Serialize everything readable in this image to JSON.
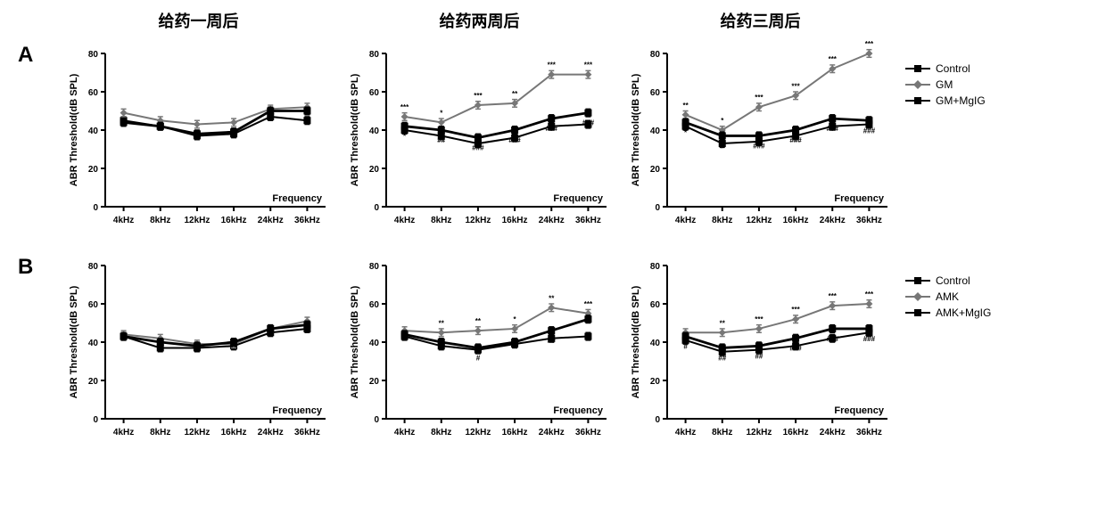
{
  "column_titles": [
    "给药一周后",
    "给药两周后",
    "给药三周后"
  ],
  "row_labels": [
    "A",
    "B"
  ],
  "y_axis_label": "ABR Threshold(dB SPL)",
  "x_axis_inline_label": "Frequency",
  "categories": [
    "4kHz",
    "8kHz",
    "12kHz",
    "16kHz",
    "24kHz",
    "36kHz"
  ],
  "ylim": [
    0,
    80
  ],
  "yticks": [
    0,
    20,
    40,
    60,
    80
  ],
  "axis_color": "#000000",
  "background_color": "#ffffff",
  "line_width": 2,
  "marker_size": 4,
  "error_bar_half": 2,
  "rows": [
    {
      "legend": [
        {
          "label": "Control",
          "color": "#000000",
          "marker": "square"
        },
        {
          "label": "GM",
          "color": "#777777",
          "marker": "diamond"
        },
        {
          "label": "GM+MgIG",
          "color": "#000000",
          "marker": "square_heavy"
        }
      ],
      "panels": [
        {
          "series": [
            {
              "values": [
                45,
                42,
                37,
                38,
                47,
                45
              ],
              "color": "#000000",
              "marker": "square"
            },
            {
              "values": [
                49,
                45,
                43,
                44,
                51,
                52
              ],
              "color": "#777777",
              "marker": "diamond"
            },
            {
              "values": [
                44,
                42,
                38,
                39,
                50,
                50
              ],
              "color": "#000000",
              "marker": "square_heavy"
            }
          ],
          "sig_above": [
            "",
            "",
            "",
            "",
            "",
            ""
          ],
          "sig_below": [
            "",
            "",
            "",
            "",
            "",
            ""
          ]
        },
        {
          "series": [
            {
              "values": [
                40,
                37,
                33,
                36,
                42,
                43
              ],
              "color": "#000000",
              "marker": "square"
            },
            {
              "values": [
                47,
                44,
                53,
                54,
                69,
                69
              ],
              "color": "#777777",
              "marker": "diamond"
            },
            {
              "values": [
                42,
                40,
                36,
                40,
                46,
                49
              ],
              "color": "#000000",
              "marker": "square_heavy"
            }
          ],
          "sig_above": [
            "***",
            "*",
            "***",
            "**",
            "***",
            "***"
          ],
          "sig_below": [
            "*",
            "##",
            "###",
            "###",
            "###",
            "###"
          ]
        },
        {
          "series": [
            {
              "values": [
                42,
                33,
                34,
                37,
                42,
                43
              ],
              "color": "#000000",
              "marker": "square"
            },
            {
              "values": [
                48,
                40,
                52,
                58,
                72,
                80
              ],
              "color": "#777777",
              "marker": "diamond"
            },
            {
              "values": [
                44,
                37,
                37,
                40,
                46,
                45
              ],
              "color": "#000000",
              "marker": "square_heavy"
            }
          ],
          "sig_above": [
            "**",
            "*",
            "***",
            "***",
            "***",
            "***"
          ],
          "sig_below": [
            "*",
            "#",
            "###",
            "###",
            "###",
            "###"
          ]
        }
      ]
    },
    {
      "legend": [
        {
          "label": "Control",
          "color": "#000000",
          "marker": "square"
        },
        {
          "label": "AMK",
          "color": "#777777",
          "marker": "diamond"
        },
        {
          "label": "AMK+MgIG",
          "color": "#000000",
          "marker": "square_heavy"
        }
      ],
      "panels": [
        {
          "series": [
            {
              "values": [
                43,
                37,
                37,
                38,
                45,
                47
              ],
              "color": "#000000",
              "marker": "square"
            },
            {
              "values": [
                44,
                42,
                39,
                39,
                47,
                51
              ],
              "color": "#777777",
              "marker": "diamond"
            },
            {
              "values": [
                43,
                40,
                38,
                40,
                47,
                49
              ],
              "color": "#000000",
              "marker": "square_heavy"
            }
          ],
          "sig_above": [
            "",
            "",
            "",
            "",
            "",
            ""
          ],
          "sig_below": [
            "",
            "",
            "",
            "",
            "",
            ""
          ]
        },
        {
          "series": [
            {
              "values": [
                43,
                38,
                36,
                39,
                42,
                43
              ],
              "color": "#000000",
              "marker": "square"
            },
            {
              "values": [
                46,
                45,
                46,
                47,
                58,
                55
              ],
              "color": "#777777",
              "marker": "diamond"
            },
            {
              "values": [
                44,
                40,
                37,
                40,
                46,
                52
              ],
              "color": "#000000",
              "marker": "square_heavy"
            }
          ],
          "sig_above": [
            "",
            "**",
            "**",
            "*",
            "**",
            "***"
          ],
          "sig_below": [
            "",
            "",
            "#",
            "",
            "##",
            ""
          ]
        },
        {
          "series": [
            {
              "values": [
                41,
                35,
                36,
                38,
                42,
                45
              ],
              "color": "#000000",
              "marker": "square"
            },
            {
              "values": [
                45,
                45,
                47,
                52,
                59,
                60
              ],
              "color": "#777777",
              "marker": "diamond"
            },
            {
              "values": [
                43,
                37,
                38,
                42,
                47,
                47
              ],
              "color": "#000000",
              "marker": "square_heavy"
            }
          ],
          "sig_above": [
            "",
            "**",
            "***",
            "***",
            "***",
            "***"
          ],
          "sig_below": [
            "#",
            "##",
            "##",
            "###",
            "###",
            "###"
          ]
        }
      ]
    }
  ]
}
